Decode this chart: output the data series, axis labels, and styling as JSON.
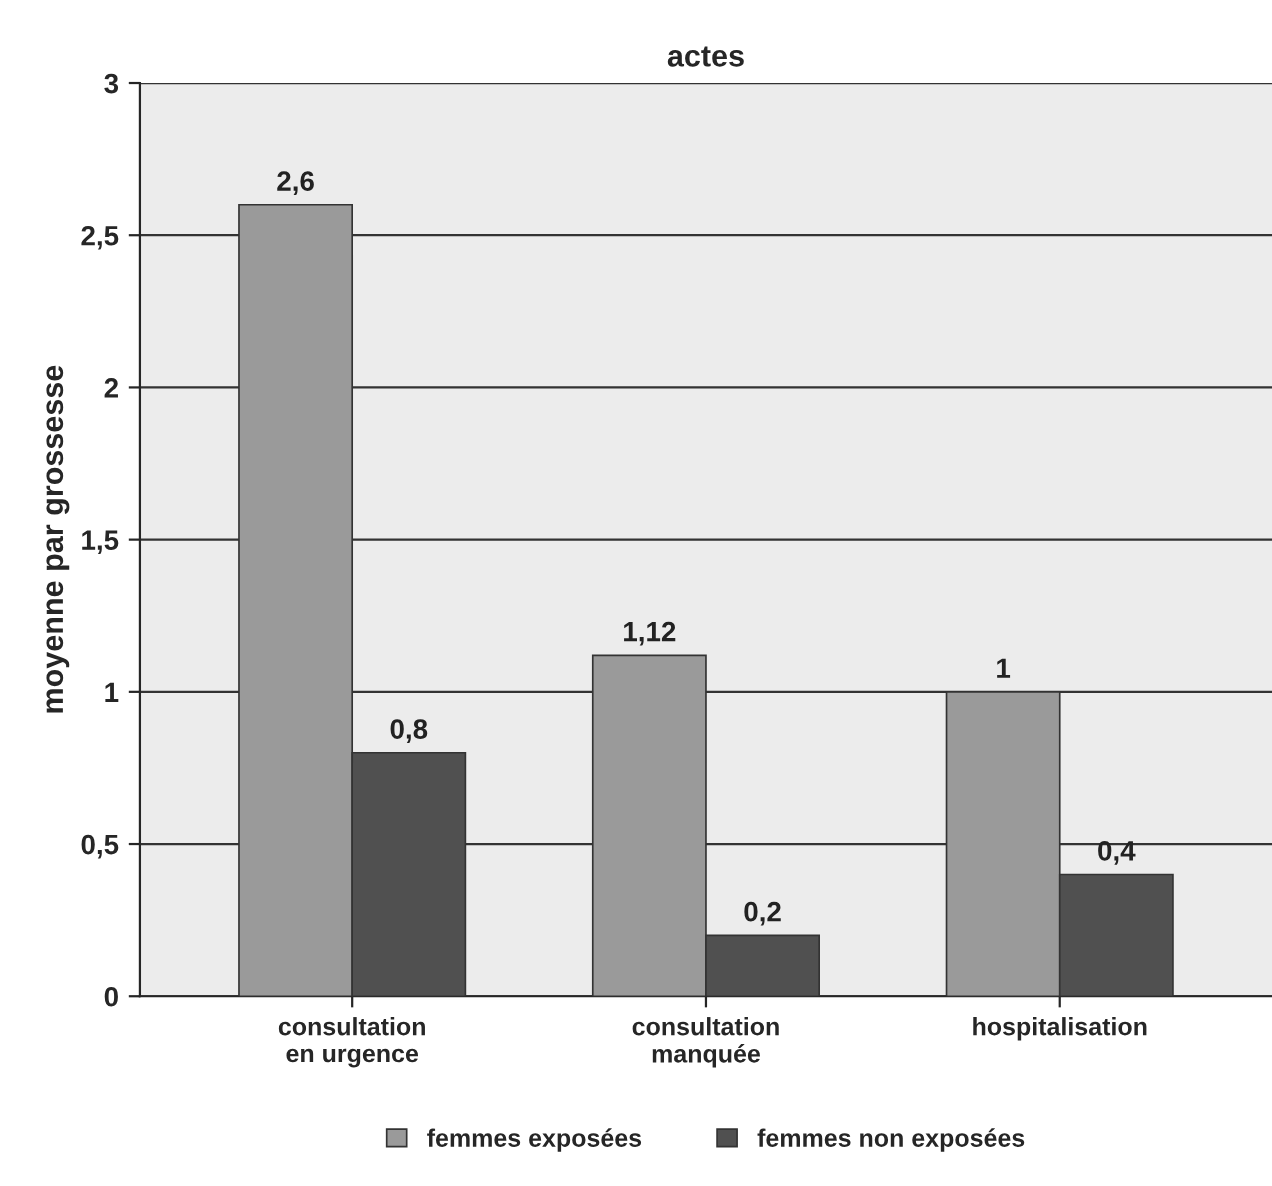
{
  "chart_data": {
    "type": "bar",
    "title": "actes",
    "ylabel": "moyenne par grossesse",
    "categories": [
      "consultation\nen urgence",
      "consultation\nmanquée",
      "hospitalisation"
    ],
    "series": [
      {
        "name": "femmes exposées",
        "color": "#9a9a9a",
        "values": [
          2.6,
          1.12,
          1
        ],
        "value_labels": [
          "2,6",
          "1,12",
          "1"
        ]
      },
      {
        "name": "femmes non exposées",
        "color": "#505050",
        "values": [
          0.8,
          0.2,
          0.4
        ],
        "value_labels": [
          "0,8",
          "0,2",
          "0,4"
        ]
      }
    ],
    "ylim": [
      0,
      3
    ],
    "yticks": [
      0,
      {
        "value": 0.5,
        "label": "0,5"
      },
      1,
      {
        "value": 1.5,
        "label": "1,5"
      },
      2,
      {
        "value": 2.5,
        "label": "2,5"
      },
      3
    ],
    "grid": "y",
    "legend": "bottom"
  }
}
